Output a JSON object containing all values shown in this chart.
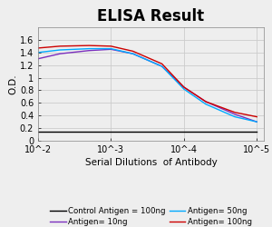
{
  "title": "ELISA Result",
  "ylabel": "O.D.",
  "xlabel": "Serial Dilutions  of Antibody",
  "ylim": [
    0,
    1.8
  ],
  "yticks": [
    0,
    0.2,
    0.4,
    0.6,
    0.8,
    1.0,
    1.2,
    1.4,
    1.6
  ],
  "ytick_labels": [
    "0",
    "0.2",
    "0.4",
    "0.6",
    "0.8",
    "1",
    "1.2",
    "1.4",
    "1.6"
  ],
  "lines": [
    {
      "label": "Control Antigen = 100ng",
      "color": "#000000",
      "x": [
        0.01,
        0.001,
        0.0001,
        1e-05
      ],
      "y": [
        0.15,
        0.15,
        0.15,
        0.15
      ]
    },
    {
      "label": "Antigen= 10ng",
      "color": "#7b2fbe",
      "x": [
        0.01,
        0.005,
        0.002,
        0.001,
        0.0005,
        0.0002,
        0.0001,
        5e-05,
        2e-05,
        1e-05
      ],
      "y": [
        1.3,
        1.38,
        1.43,
        1.45,
        1.38,
        1.18,
        0.85,
        0.62,
        0.42,
        0.3
      ]
    },
    {
      "label": "Antigen= 50ng",
      "color": "#00aaff",
      "x": [
        0.01,
        0.005,
        0.002,
        0.001,
        0.0005,
        0.0002,
        0.0001,
        5e-05,
        2e-05,
        1e-05
      ],
      "y": [
        1.4,
        1.44,
        1.46,
        1.46,
        1.38,
        1.18,
        0.82,
        0.58,
        0.38,
        0.3
      ]
    },
    {
      "label": "Antigen= 100ng",
      "color": "#cc0000",
      "x": [
        0.01,
        0.005,
        0.002,
        0.001,
        0.0005,
        0.0002,
        0.0001,
        5e-05,
        2e-05,
        1e-05
      ],
      "y": [
        1.47,
        1.5,
        1.51,
        1.5,
        1.42,
        1.22,
        0.85,
        0.62,
        0.45,
        0.38
      ]
    }
  ],
  "xtick_positions": [
    0.01,
    0.001,
    0.0001,
    1e-05
  ],
  "xtick_labels": [
    "10^-2",
    "10^-3",
    "10^-4",
    "10^-5"
  ],
  "title_fontsize": 12,
  "label_fontsize": 7.5,
  "tick_fontsize": 7,
  "legend_fontsize": 6.2,
  "background_color": "#eeeeee",
  "grid_color": "#cccccc"
}
